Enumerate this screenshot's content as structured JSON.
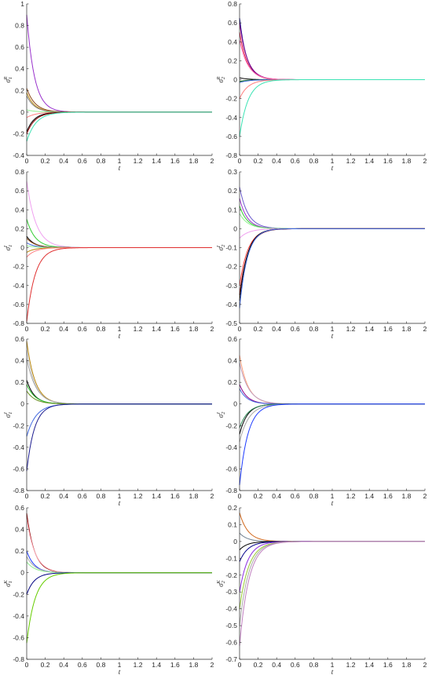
{
  "figure": {
    "x_label": "t",
    "x_ticks": [
      0,
      0.2,
      0.4,
      0.6,
      0.8,
      1,
      1.2,
      1.4,
      1.6,
      1.8,
      2
    ]
  },
  "chart_data": [
    {
      "type": "line",
      "ylabel_base": "σ",
      "ylabel_sub": "1",
      "ylabel_sup": "R",
      "xlabel": "t",
      "xlim": [
        0,
        2
      ],
      "ylim": [
        -0.4,
        1
      ],
      "y_ticks": [
        -0.4,
        -0.2,
        0,
        0.2,
        0.4,
        0.6,
        0.8,
        1
      ],
      "series": [
        {
          "initial": 0.9,
          "rate": 12,
          "color": "#9932CC"
        },
        {
          "initial": 0.22,
          "rate": 11,
          "color": "#8B4513"
        },
        {
          "initial": 0.18,
          "rate": 12,
          "color": "#B8860B"
        },
        {
          "initial": 0.15,
          "rate": 12,
          "color": "#808080"
        },
        {
          "initial": 0.02,
          "rate": 10,
          "color": "#90EE90"
        },
        {
          "initial": -0.05,
          "rate": 10,
          "color": "#FF8080"
        },
        {
          "initial": -0.18,
          "rate": 12,
          "color": "#000000"
        },
        {
          "initial": -0.2,
          "rate": 11,
          "color": "#8B0000"
        },
        {
          "initial": -0.27,
          "rate": 10,
          "color": "#3CE3B4"
        }
      ]
    },
    {
      "type": "line",
      "ylabel_base": "σ",
      "ylabel_sub": "2",
      "ylabel_sup": "R",
      "xlabel": "t",
      "xlim": [
        0,
        2
      ],
      "ylim": [
        -0.8,
        0.8
      ],
      "y_ticks": [
        -0.8,
        -0.6,
        -0.4,
        -0.2,
        0,
        0.2,
        0.4,
        0.6,
        0.8
      ],
      "series": [
        {
          "initial": 0.65,
          "rate": 13,
          "color": "#00008B"
        },
        {
          "initial": 0.6,
          "rate": 12,
          "color": "#8B008B"
        },
        {
          "initial": 0.5,
          "rate": 12,
          "color": "#DC143C"
        },
        {
          "initial": 0.42,
          "rate": 11,
          "color": "#FF69B4"
        },
        {
          "initial": 0.02,
          "rate": 12,
          "color": "#000000"
        },
        {
          "initial": -0.02,
          "rate": 12,
          "color": "#006400"
        },
        {
          "initial": -0.03,
          "rate": 10,
          "color": "#4169E1"
        },
        {
          "initial": -0.2,
          "rate": 11,
          "color": "#FF7F7F"
        },
        {
          "initial": -0.6,
          "rate": 11,
          "color": "#3CE3B4"
        }
      ]
    },
    {
      "type": "line",
      "ylabel_base": "σ",
      "ylabel_sub": "1",
      "ylabel_sup": "I",
      "xlabel": "t",
      "xlim": [
        0,
        2
      ],
      "ylim": [
        -0.8,
        0.8
      ],
      "y_ticks": [
        -0.8,
        -0.6,
        -0.4,
        -0.2,
        0,
        0.2,
        0.4,
        0.6,
        0.8
      ],
      "series": [
        {
          "initial": 0.7,
          "rate": 10,
          "color": "#F0A0F0"
        },
        {
          "initial": 0.3,
          "rate": 11,
          "color": "#32CD32"
        },
        {
          "initial": 0.12,
          "rate": 12,
          "color": "#000000"
        },
        {
          "initial": 0.1,
          "rate": 11,
          "color": "#8B4513"
        },
        {
          "initial": 0.05,
          "rate": 11,
          "color": "#4169E1"
        },
        {
          "initial": 0.02,
          "rate": 10,
          "color": "#90EE90"
        },
        {
          "initial": -0.05,
          "rate": 12,
          "color": "#B8860B"
        },
        {
          "initial": -0.1,
          "rate": 11,
          "color": "#FF8080"
        },
        {
          "initial": -0.78,
          "rate": 11,
          "color": "#E03030"
        }
      ]
    },
    {
      "type": "line",
      "ylabel_base": "σ",
      "ylabel_sub": "2",
      "ylabel_sup": "I",
      "xlabel": "t",
      "xlim": [
        0,
        2
      ],
      "ylim": [
        -0.5,
        0.3
      ],
      "y_ticks": [
        -0.5,
        -0.4,
        -0.3,
        -0.2,
        -0.1,
        0,
        0.1,
        0.2,
        0.3
      ],
      "series": [
        {
          "initial": 0.22,
          "rate": 11,
          "color": "#6A5ACD"
        },
        {
          "initial": 0.16,
          "rate": 12,
          "color": "#9932CC"
        },
        {
          "initial": 0.12,
          "rate": 12,
          "color": "#32CD32"
        },
        {
          "initial": 0.08,
          "rate": 11,
          "color": "#90EE90"
        },
        {
          "initial": -0.05,
          "rate": 10,
          "color": "#F0A0F0"
        },
        {
          "initial": -0.3,
          "rate": 11,
          "color": "#FF4040"
        },
        {
          "initial": -0.35,
          "rate": 11,
          "color": "#8B0000"
        },
        {
          "initial": -0.38,
          "rate": 12,
          "color": "#000000"
        },
        {
          "initial": -0.42,
          "rate": 12,
          "color": "#4169E1"
        }
      ]
    },
    {
      "type": "line",
      "ylabel_base": "σ",
      "ylabel_sub": "1",
      "ylabel_sup": "J",
      "xlabel": "t",
      "xlim": [
        0,
        2
      ],
      "ylim": [
        -0.8,
        0.6
      ],
      "y_ticks": [
        -0.8,
        -0.6,
        -0.4,
        -0.2,
        0,
        0.2,
        0.4,
        0.6
      ],
      "series": [
        {
          "initial": 0.58,
          "rate": 11,
          "color": "#B8860B"
        },
        {
          "initial": 0.5,
          "rate": 11,
          "color": "#C0C0C0"
        },
        {
          "initial": 0.42,
          "rate": 10,
          "color": "#A9A9A9"
        },
        {
          "initial": 0.22,
          "rate": 12,
          "color": "#000000"
        },
        {
          "initial": 0.18,
          "rate": 11,
          "color": "#32CD32"
        },
        {
          "initial": 0.12,
          "rate": 11,
          "color": "#6B8E23"
        },
        {
          "initial": -0.3,
          "rate": 10,
          "color": "#4169E1"
        },
        {
          "initial": -0.62,
          "rate": 12,
          "color": "#1E1E90"
        }
      ]
    },
    {
      "type": "line",
      "ylabel_base": "σ",
      "ylabel_sub": "2",
      "ylabel_sup": "J",
      "xlabel": "t",
      "xlim": [
        0,
        2
      ],
      "ylim": [
        -0.8,
        0.6
      ],
      "y_ticks": [
        -0.8,
        -0.6,
        -0.4,
        -0.2,
        0,
        0.2,
        0.4,
        0.6
      ],
      "series": [
        {
          "initial": 0.45,
          "rate": 11,
          "color": "#FFA07A"
        },
        {
          "initial": 0.38,
          "rate": 10,
          "color": "#C0A0C0"
        },
        {
          "initial": 0.18,
          "rate": 12,
          "color": "#8B008B"
        },
        {
          "initial": 0.14,
          "rate": 12,
          "color": "#4169E1"
        },
        {
          "initial": -0.28,
          "rate": 12,
          "color": "#000000"
        },
        {
          "initial": -0.22,
          "rate": 11,
          "color": "#2E8B57"
        },
        {
          "initial": -0.35,
          "rate": 10,
          "color": "#A9A9A9"
        },
        {
          "initial": -0.75,
          "rate": 11,
          "color": "#1E3CFF"
        }
      ]
    },
    {
      "type": "line",
      "ylabel_base": "σ",
      "ylabel_sub": "1",
      "ylabel_sup": "K",
      "xlabel": "t",
      "xlim": [
        0,
        2
      ],
      "ylim": [
        -0.8,
        0.6
      ],
      "y_ticks": [
        -0.8,
        -0.6,
        -0.4,
        -0.2,
        0,
        0.2,
        0.4,
        0.6
      ],
      "series": [
        {
          "initial": 0.55,
          "rate": 12,
          "color": "#8B0000"
        },
        {
          "initial": 0.5,
          "rate": 11,
          "color": "#FFB6C1"
        },
        {
          "initial": 0.2,
          "rate": 12,
          "color": "#1E3CFF"
        },
        {
          "initial": 0.15,
          "rate": 11,
          "color": "#A9A9A9"
        },
        {
          "initial": 0.1,
          "rate": 11,
          "color": "#90EE90"
        },
        {
          "initial": -0.2,
          "rate": 12,
          "color": "#000080"
        },
        {
          "initial": -0.65,
          "rate": 11,
          "color": "#66CC00"
        }
      ]
    },
    {
      "type": "line",
      "ylabel_base": "σ",
      "ylabel_sub": "2",
      "ylabel_sup": "K",
      "xlabel": "t",
      "xlim": [
        0,
        2
      ],
      "ylim": [
        -0.7,
        0.2
      ],
      "y_ticks": [
        -0.7,
        -0.6,
        -0.5,
        -0.4,
        -0.3,
        -0.2,
        -0.1,
        0,
        0.1,
        0.2
      ],
      "series": [
        {
          "initial": 0.17,
          "rate": 11,
          "color": "#D2691E"
        },
        {
          "initial": 0.05,
          "rate": 12,
          "color": "#708090"
        },
        {
          "initial": -0.05,
          "rate": 12,
          "color": "#000000"
        },
        {
          "initial": -0.12,
          "rate": 11,
          "color": "#00008B"
        },
        {
          "initial": -0.3,
          "rate": 11,
          "color": "#8A2BE2"
        },
        {
          "initial": -0.4,
          "rate": 10,
          "color": "#9ACD32"
        },
        {
          "initial": -0.5,
          "rate": 10,
          "color": "#A9A9A9"
        },
        {
          "initial": -0.62,
          "rate": 10,
          "color": "#C080C0"
        }
      ]
    }
  ]
}
